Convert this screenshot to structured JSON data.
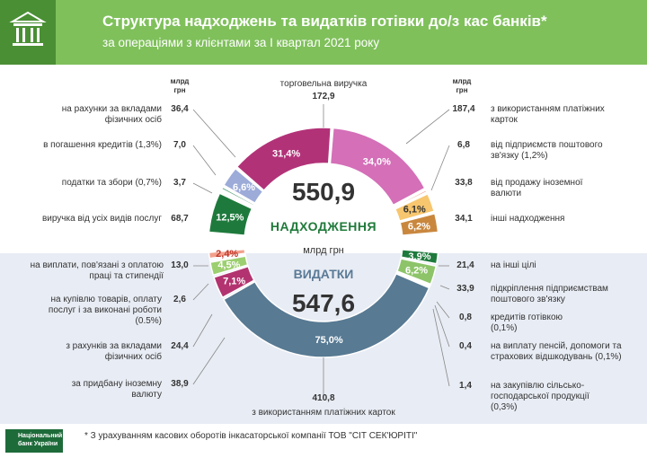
{
  "header": {
    "title": "Структура надходжень та видатків готівки до/з кас банків*",
    "subtitle": "за операціями з клієнтами за І квартал 2021 року"
  },
  "units": {
    "col_left": "млрд грн",
    "col_right": "млрд грн",
    "center": "млрд грн"
  },
  "income": {
    "label": "НАДХОДЖЕННЯ",
    "total": "550,9",
    "top_label": "торговельна виручка",
    "top_value": "172,9",
    "left_items": [
      {
        "label": "на рахунки за вкладами фізичних осіб",
        "value": "36,4"
      },
      {
        "label": "в погашення кредитів (1,3%)",
        "value": "7,0"
      },
      {
        "label": "податки та збори (0,7%)",
        "value": "3,7"
      },
      {
        "label": "виручка від усіх видів послуг",
        "value": "68,7"
      }
    ],
    "right_items": [
      {
        "label": "з використанням платіжних карток",
        "value": "187,4"
      },
      {
        "label": "від підприємств поштового зв'язку (1,2%)",
        "value": "6,8"
      },
      {
        "label": "від продажу іноземної валюти",
        "value": "33,8"
      },
      {
        "label": "інші надходження",
        "value": "34,1"
      }
    ]
  },
  "expenses": {
    "label": "ВИДАТКИ",
    "total": "547,6",
    "bottom_label": "з використанням платіжних карток",
    "bottom_value": "410,8",
    "left_items": [
      {
        "label": "на виплати, пов'язані з оплатою праці та стипендії",
        "value": "13,0"
      },
      {
        "label": "на купівлю товарів, оплату послуг і за виконані роботи (0.5%)",
        "value": "2,6"
      },
      {
        "label": "з рахунків за вкладами фізичних осіб",
        "value": "24,4"
      },
      {
        "label": "за придбану іноземну валюту",
        "value": "38,9"
      }
    ],
    "right_items": [
      {
        "label": "на інші цілі",
        "value": "21,4"
      },
      {
        "label": "підкріплення підприємствам поштового зв'язку",
        "value": "33,9"
      },
      {
        "label": "кредитів готівкою (0,1%)",
        "value": "0,8"
      },
      {
        "label": "на виплату пенсій, допомоги та страхових відшкодувань (0,1%)",
        "value": "0,4"
      },
      {
        "label": "на закупівлю сільсько-господарської продукції (0,3%)",
        "value": "1,4"
      }
    ]
  },
  "footer": {
    "footnote": "* З урахуванням касових оборотів інкасаторської компанії ТОВ \"СІТ СЕК'ЮРІТІ\"",
    "bank_name": "Національний банк України"
  },
  "chart_data": [
    {
      "type": "pie",
      "title": "НАДХОДЖЕННЯ",
      "total": 550.9,
      "unit": "млрд грн",
      "slices": [
        {
          "name": "виручка від усіх видів послуг",
          "value": 68.7,
          "percent": 12.5,
          "color": "#1e7a3c"
        },
        {
          "name": "податки та збори",
          "value": 3.7,
          "percent": 0.7,
          "color": "#7b6a9a"
        },
        {
          "name": "в погашення кредитів",
          "value": 7.0,
          "percent": 1.3,
          "color": "#5fa57e"
        },
        {
          "name": "на рахунки за вкладами фізичних осіб",
          "value": 36.4,
          "percent": 6.6,
          "color": "#9cabd8"
        },
        {
          "name": "торговельна виручка",
          "value": 172.9,
          "percent": 31.4,
          "color": "#b23278"
        },
        {
          "name": "з використанням платіжних карток",
          "value": 187.4,
          "percent": 34.0,
          "color": "#d46fb8"
        },
        {
          "name": "від підприємств поштового зв'язку",
          "value": 6.8,
          "percent": 1.2,
          "color": "#ee8f84"
        },
        {
          "name": "від продажу іноземної валюти",
          "value": 33.8,
          "percent": 6.1,
          "color": "#f7c66e"
        },
        {
          "name": "інші надходження",
          "value": 34.1,
          "percent": 6.2,
          "color": "#c9873e"
        }
      ]
    },
    {
      "type": "pie",
      "title": "ВИДАТКИ",
      "total": 547.6,
      "unit": "млрд грн",
      "slices": [
        {
          "name": "на інші цілі",
          "value": 21.4,
          "percent": 3.9,
          "color": "#1e7a3c"
        },
        {
          "name": "підкріплення підприємствам поштового зв'язку",
          "value": 33.9,
          "percent": 6.2,
          "color": "#8dc46a"
        },
        {
          "name": "кредитів готівкою",
          "value": 0.8,
          "percent": 0.1,
          "color": "#6f8fa9"
        },
        {
          "name": "на виплату пенсій, допомоги та страхових відшкодувань",
          "value": 0.4,
          "percent": 0.1,
          "color": "#6f8fa9"
        },
        {
          "name": "на закупівлю сільськогосподарської продукції",
          "value": 1.4,
          "percent": 0.3,
          "color": "#6f8fa9"
        },
        {
          "name": "з використанням платіжних карток",
          "value": 410.8,
          "percent": 75.0,
          "color": "#587a93"
        },
        {
          "name": "за придбану іноземну валюту",
          "value": 38.9,
          "percent": 7.1,
          "color": "#b2336f"
        },
        {
          "name": "з рахунків за вкладами фізичних осіб",
          "value": 24.4,
          "percent": 4.5,
          "color": "#9ccf6f"
        },
        {
          "name": "на купівлю товарів, оплату послуг і за виконані роботи",
          "value": 2.6,
          "percent": 0.5,
          "color": "#7dae8f"
        },
        {
          "name": "на виплати, пов'язані з оплатою праці та стипендії",
          "value": 13.0,
          "percent": 2.4,
          "color": "#f2a08c"
        }
      ]
    }
  ],
  "ring_labels": {
    "income": [
      "12,5%",
      "6,6%",
      "31,4%",
      "34,0%",
      "6,1%",
      "6,2%"
    ],
    "expenses": [
      "2,4%",
      "4,5%",
      "7,1%",
      "75,0%",
      "3,9%",
      "6,2%"
    ]
  }
}
